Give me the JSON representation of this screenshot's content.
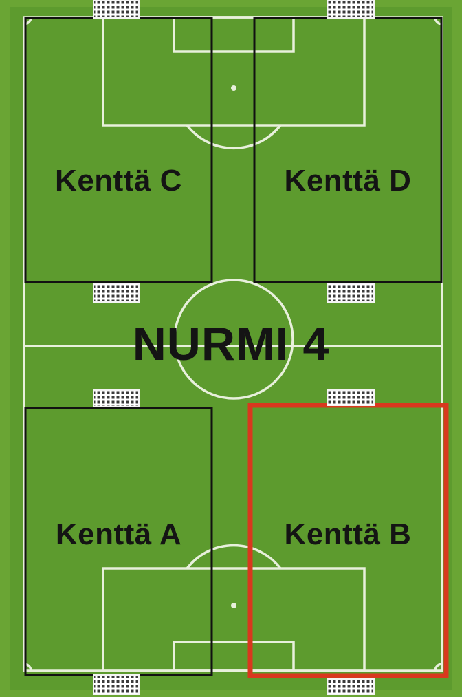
{
  "map": {
    "title": "NURMI 4",
    "fields": [
      {
        "id": "C",
        "label": "Kenttä C",
        "highlighted": false
      },
      {
        "id": "D",
        "label": "Kenttä D",
        "highlighted": false
      },
      {
        "id": "A",
        "label": "Kenttä A",
        "highlighted": false
      },
      {
        "id": "B",
        "label": "Kenttä B",
        "highlighted": true
      }
    ]
  },
  "colors": {
    "grass": "#5d9b2e",
    "outer_grass": "#6aa534",
    "pitch_line": "#e8f0dc",
    "field_border": "#111111",
    "highlight": "#d9381e",
    "text": "#141414"
  },
  "icons": {
    "goal": "goal-net-icon"
  }
}
